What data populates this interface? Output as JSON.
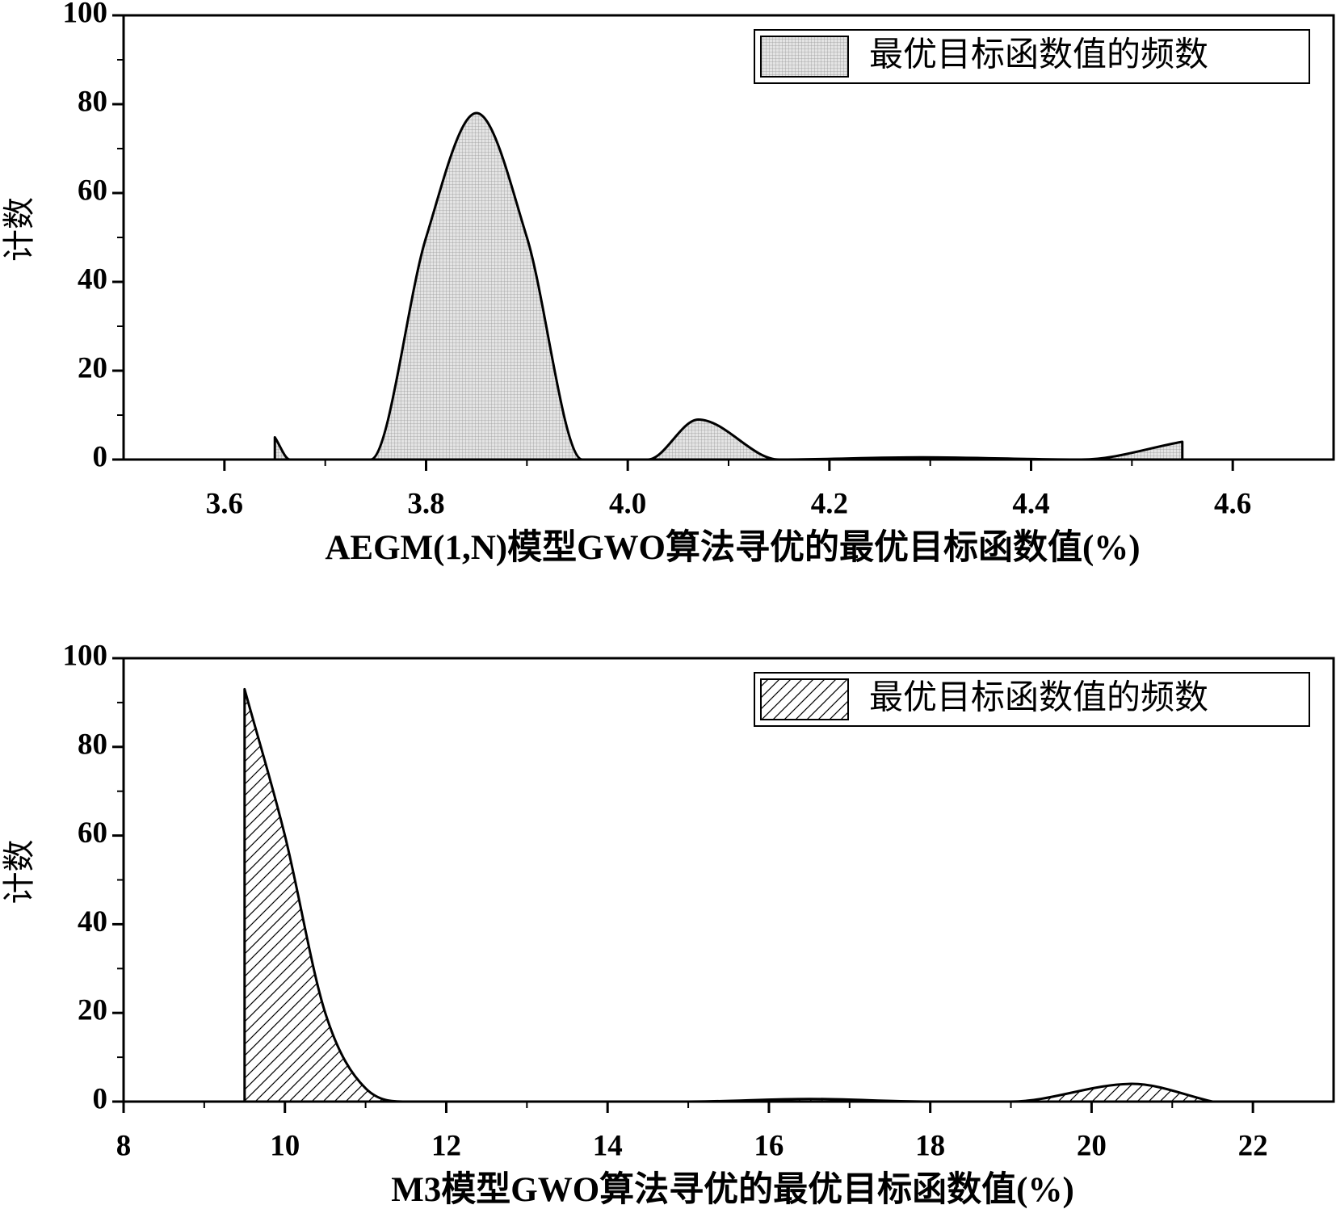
{
  "chart_data": [
    {
      "type": "area",
      "x": [
        3.65,
        3.665,
        3.745,
        3.8,
        3.85,
        3.9,
        3.955,
        4.02,
        4.07,
        4.15,
        4.29,
        4.45,
        4.55
      ],
      "series": [
        {
          "name": "最优目标函数值的频数",
          "color": "#000000",
          "pattern": "grid",
          "values": [
            5,
            0,
            0,
            50,
            78,
            50,
            0,
            0,
            9,
            0,
            0.5,
            0,
            4
          ]
        }
      ],
      "x_label": "AEGM(1,N)模型GWO算法寻优的最优目标函数值(%)",
      "y_label": "计数",
      "xlim": [
        3.5,
        4.7
      ],
      "xticks": [
        3.6,
        3.8,
        {
          "value": 4.0,
          "label": "4.0"
        },
        4.2,
        4.4,
        4.6
      ],
      "ylim": [
        0,
        100
      ],
      "yticks": [
        0,
        20,
        40,
        60,
        80,
        100
      ],
      "legend": "top-right"
    },
    {
      "type": "area",
      "x": [
        9.5,
        10,
        10.5,
        11,
        11.5,
        15,
        16.5,
        18,
        19,
        20.5,
        21.5
      ],
      "series": [
        {
          "name": "最优目标函数值的频数",
          "color": "#000000",
          "pattern": "hatch",
          "values": [
            93,
            60,
            20,
            3,
            0,
            0,
            0.6,
            0,
            0,
            4,
            0
          ]
        }
      ],
      "x_label": "M3模型GWO算法寻优的最优目标函数值(%)",
      "y_label": "计数",
      "xlim": [
        8,
        23
      ],
      "xticks": [
        8,
        10,
        12,
        14,
        16,
        18,
        20,
        22
      ],
      "ylim": [
        0,
        100
      ],
      "yticks": [
        0,
        20,
        40,
        60,
        80,
        100
      ],
      "legend": "top-right"
    }
  ]
}
